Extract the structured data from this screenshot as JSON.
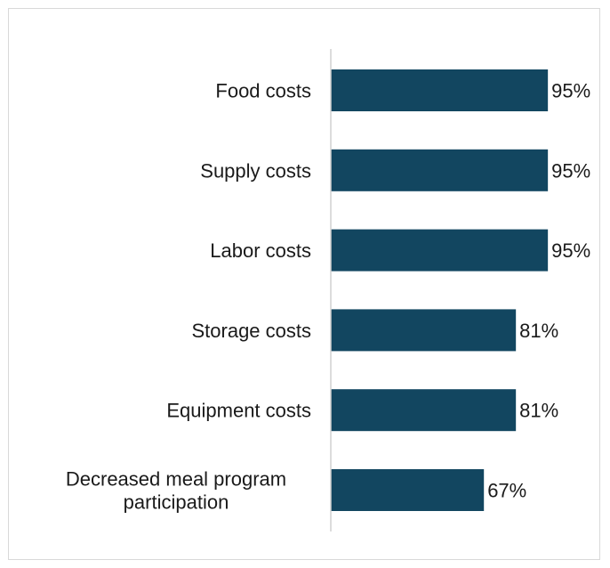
{
  "chart_data": {
    "type": "bar",
    "orientation": "horizontal",
    "categories": [
      [
        "Food costs"
      ],
      [
        "Supply costs"
      ],
      [
        "Labor costs"
      ],
      [
        "Storage costs"
      ],
      [
        "Equipment costs"
      ],
      [
        "Decreased meal program",
        "participation"
      ]
    ],
    "values": [
      95,
      95,
      95,
      81,
      81,
      67
    ],
    "value_labels": [
      "95%",
      "95%",
      "95%",
      "81%",
      "81%",
      "67%"
    ],
    "title": "",
    "xlabel": "",
    "ylabel": "",
    "xlim": [
      0,
      100
    ],
    "grid": false,
    "legend": "none",
    "bar_color": "#124660"
  }
}
